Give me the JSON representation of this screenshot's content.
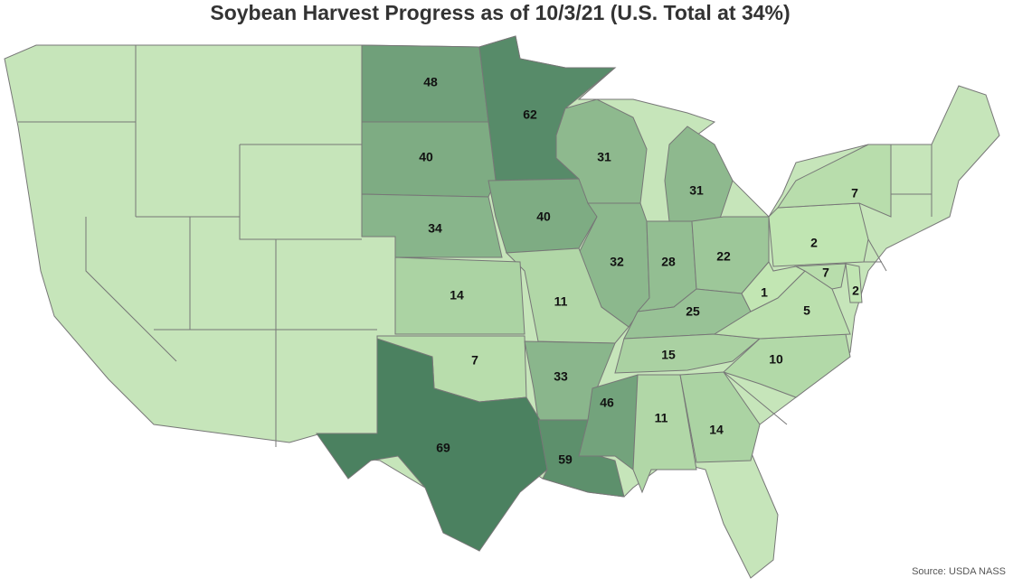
{
  "title": "Soybean Harvest Progress as of 10/3/21 (U.S. Total at 34%)",
  "source": "Source: USDA NASS",
  "values": [
    48,
    62,
    40,
    34,
    40,
    31,
    31,
    32,
    28,
    22,
    25,
    11,
    14,
    7,
    33,
    69,
    59,
    46,
    11,
    15,
    14,
    10,
    5,
    1,
    2,
    7,
    7,
    2
  ],
  "color_scale": [
    "#c2e6b3",
    "#4b8160"
  ],
  "no_data_color": "#c6e5ba"
}
